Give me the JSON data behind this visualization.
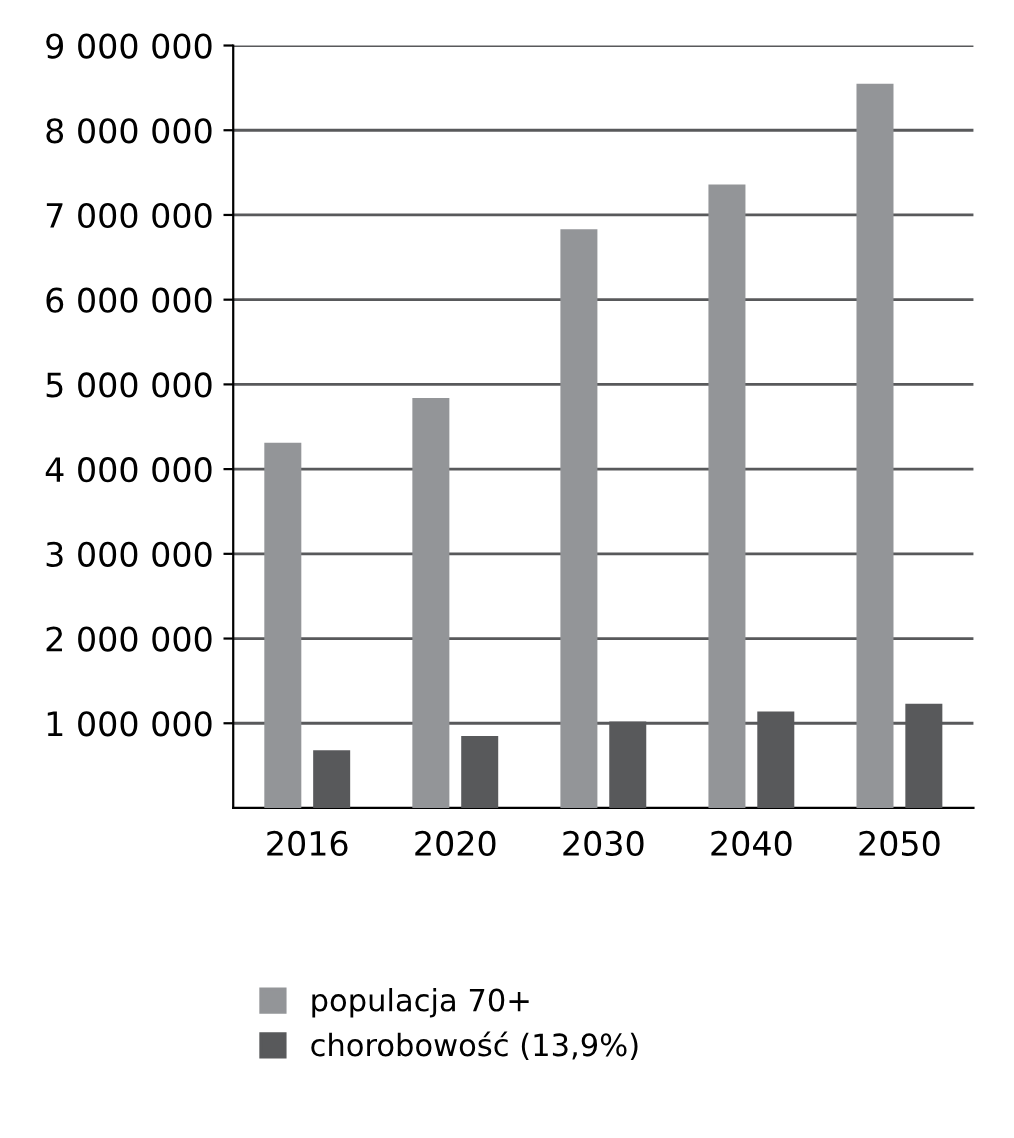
{
  "chart_data": {
    "type": "bar",
    "categories": [
      "2016",
      "2020",
      "2030",
      "2040",
      "2050"
    ],
    "series": [
      {
        "name": "populacja 70+",
        "color": "#939598",
        "values": [
          4310000,
          4840000,
          6830000,
          7360000,
          8550000
        ]
      },
      {
        "name": "chorobowość (13,9%)",
        "color": "#58595b",
        "values": [
          680000,
          850000,
          1020000,
          1140000,
          1230000
        ]
      }
    ],
    "ylim": [
      0,
      9000000
    ],
    "yticks": [
      {
        "value": 1000000,
        "label": "1 000 000"
      },
      {
        "value": 2000000,
        "label": "2 000 000"
      },
      {
        "value": 3000000,
        "label": "3 000 000"
      },
      {
        "value": 4000000,
        "label": "4 000 000"
      },
      {
        "value": 5000000,
        "label": "5 000 000"
      },
      {
        "value": 6000000,
        "label": "6 000 000"
      },
      {
        "value": 7000000,
        "label": "7 000 000"
      },
      {
        "value": 8000000,
        "label": "8 000 000"
      },
      {
        "value": 9000000,
        "label": "9 000 000"
      }
    ],
    "grid": "y",
    "legend": "bottom"
  }
}
